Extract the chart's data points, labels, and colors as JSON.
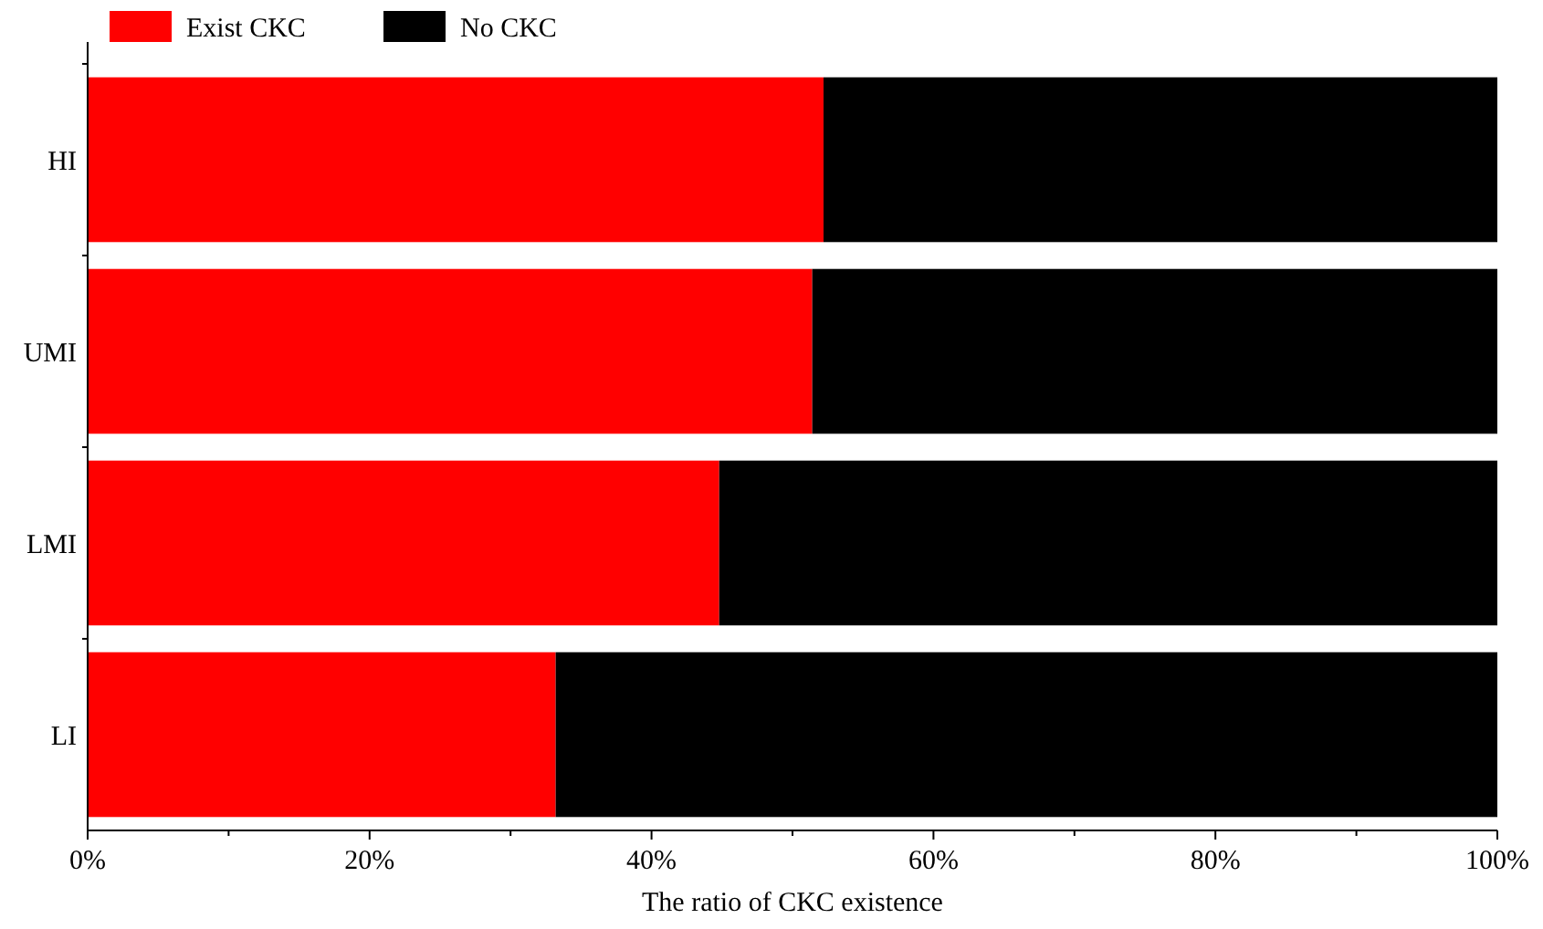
{
  "chart_data": {
    "type": "bar",
    "orientation": "horizontal",
    "stacked": true,
    "xlabel": "The ratio of CKC existence",
    "categories": [
      "HI",
      "UMI",
      "LMI",
      "LI"
    ],
    "series": [
      {
        "name": "Exist CKC",
        "color": "#ff0000",
        "values": [
          52.2,
          51.4,
          44.8,
          33.2
        ]
      },
      {
        "name": "No CKC",
        "color": "#000000",
        "values": [
          47.8,
          48.6,
          55.2,
          66.8
        ]
      }
    ],
    "xlim": [
      0,
      100
    ],
    "xticks": [
      {
        "value": 0,
        "label": "0%"
      },
      {
        "value": 10,
        "label": null
      },
      {
        "value": 20,
        "label": "20%"
      },
      {
        "value": 30,
        "label": null
      },
      {
        "value": 40,
        "label": "40%"
      },
      {
        "value": 50,
        "label": null
      },
      {
        "value": 60,
        "label": "60%"
      },
      {
        "value": 70,
        "label": null
      },
      {
        "value": 80,
        "label": "80%"
      },
      {
        "value": 90,
        "label": null
      },
      {
        "value": 100,
        "label": "100%"
      }
    ],
    "legend": "top left",
    "grid": false
  }
}
